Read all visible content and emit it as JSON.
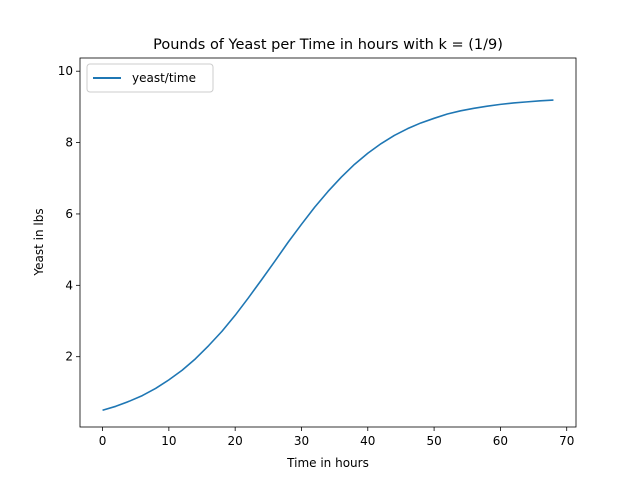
{
  "chart_data": {
    "type": "line",
    "title": "Pounds of Yeast per Time in hours with k = (1/9)",
    "xlabel": "Time in hours",
    "ylabel": "Yeast in lbs",
    "xlim": [
      -3.4,
      71.4
    ],
    "ylim": [
      0.03,
      10.37
    ],
    "xticks": [
      0,
      10,
      20,
      30,
      40,
      50,
      60,
      70
    ],
    "yticks": [
      2,
      4,
      6,
      8,
      10
    ],
    "xtick_labels": [
      "0",
      "10",
      "20",
      "30",
      "40",
      "50",
      "60",
      "70"
    ],
    "ytick_labels": [
      "2",
      "4",
      "6",
      "8",
      "10"
    ],
    "grid": false,
    "legend_position": "upper left",
    "series": [
      {
        "name": "yeast/time",
        "color": "#1f77b4",
        "x": [
          0,
          2,
          4,
          6,
          8,
          10,
          12,
          14,
          16,
          18,
          20,
          22,
          24,
          26,
          28,
          30,
          32,
          34,
          36,
          38,
          40,
          42,
          44,
          46,
          48,
          50,
          52,
          54,
          56,
          58,
          60,
          62,
          64,
          66,
          68
        ],
        "y": [
          0.5,
          0.61,
          0.75,
          0.91,
          1.11,
          1.35,
          1.62,
          1.94,
          2.31,
          2.71,
          3.16,
          3.65,
          4.16,
          4.68,
          5.21,
          5.71,
          6.19,
          6.63,
          7.03,
          7.39,
          7.7,
          7.97,
          8.2,
          8.39,
          8.55,
          8.68,
          8.8,
          8.89,
          8.96,
          9.02,
          9.07,
          9.11,
          9.14,
          9.17,
          9.19
        ]
      }
    ]
  }
}
